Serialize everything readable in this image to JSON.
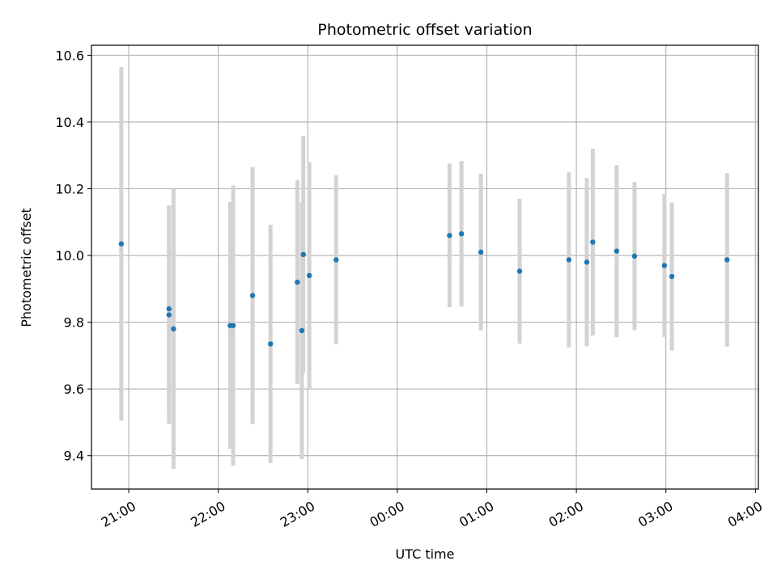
{
  "chart_data": {
    "type": "scatter",
    "title": "Photometric offset variation",
    "xlabel": "UTC time",
    "ylabel": "Photometric offset",
    "x_unit": "UTC hours, wrapping past midnight (24:00 = 00:00)",
    "xlim": [
      "20:35",
      "04:02"
    ],
    "ylim": [
      9.3,
      10.63
    ],
    "x_ticks": [
      "21:00",
      "22:00",
      "23:00",
      "00:00",
      "01:00",
      "02:00",
      "03:00",
      "04:00"
    ],
    "y_ticks": [
      "9.4",
      "9.6",
      "9.8",
      "10.0",
      "10.2",
      "10.4",
      "10.6"
    ],
    "grid": true,
    "marker_color": "#1f77b4",
    "errorbar_color": "#d3d3d3",
    "points": [
      {
        "time": "20:55",
        "y": 10.035,
        "err": 0.53
      },
      {
        "time": "21:27",
        "y": 9.84,
        "err": 0.31
      },
      {
        "time": "21:27",
        "y": 9.822,
        "err": 0.327
      },
      {
        "time": "21:30",
        "y": 9.78,
        "err": 0.42
      },
      {
        "time": "22:08",
        "y": 9.79,
        "err": 0.37
      },
      {
        "time": "22:10",
        "y": 9.79,
        "err": 0.42
      },
      {
        "time": "22:23",
        "y": 9.88,
        "err": 0.385
      },
      {
        "time": "22:35",
        "y": 9.735,
        "err": 0.357
      },
      {
        "time": "22:53",
        "y": 9.92,
        "err": 0.305
      },
      {
        "time": "22:56",
        "y": 9.775,
        "err": 0.385
      },
      {
        "time": "22:57",
        "y": 10.003,
        "err": 0.355
      },
      {
        "time": "23:01",
        "y": 9.94,
        "err": 0.34
      },
      {
        "time": "23:19",
        "y": 9.987,
        "err": 0.253
      },
      {
        "time": "00:35",
        "y": 10.06,
        "err": 0.215
      },
      {
        "time": "00:43",
        "y": 10.065,
        "err": 0.218
      },
      {
        "time": "00:56",
        "y": 10.01,
        "err": 0.235
      },
      {
        "time": "01:22",
        "y": 9.953,
        "err": 0.217
      },
      {
        "time": "01:55",
        "y": 9.987,
        "err": 0.262
      },
      {
        "time": "02:07",
        "y": 9.98,
        "err": 0.252
      },
      {
        "time": "02:11",
        "y": 10.04,
        "err": 0.28
      },
      {
        "time": "02:27",
        "y": 10.013,
        "err": 0.258
      },
      {
        "time": "02:39",
        "y": 9.998,
        "err": 0.222
      },
      {
        "time": "02:59",
        "y": 9.97,
        "err": 0.215
      },
      {
        "time": "03:04",
        "y": 9.937,
        "err": 0.222
      },
      {
        "time": "03:41",
        "y": 9.987,
        "err": 0.26
      }
    ]
  }
}
